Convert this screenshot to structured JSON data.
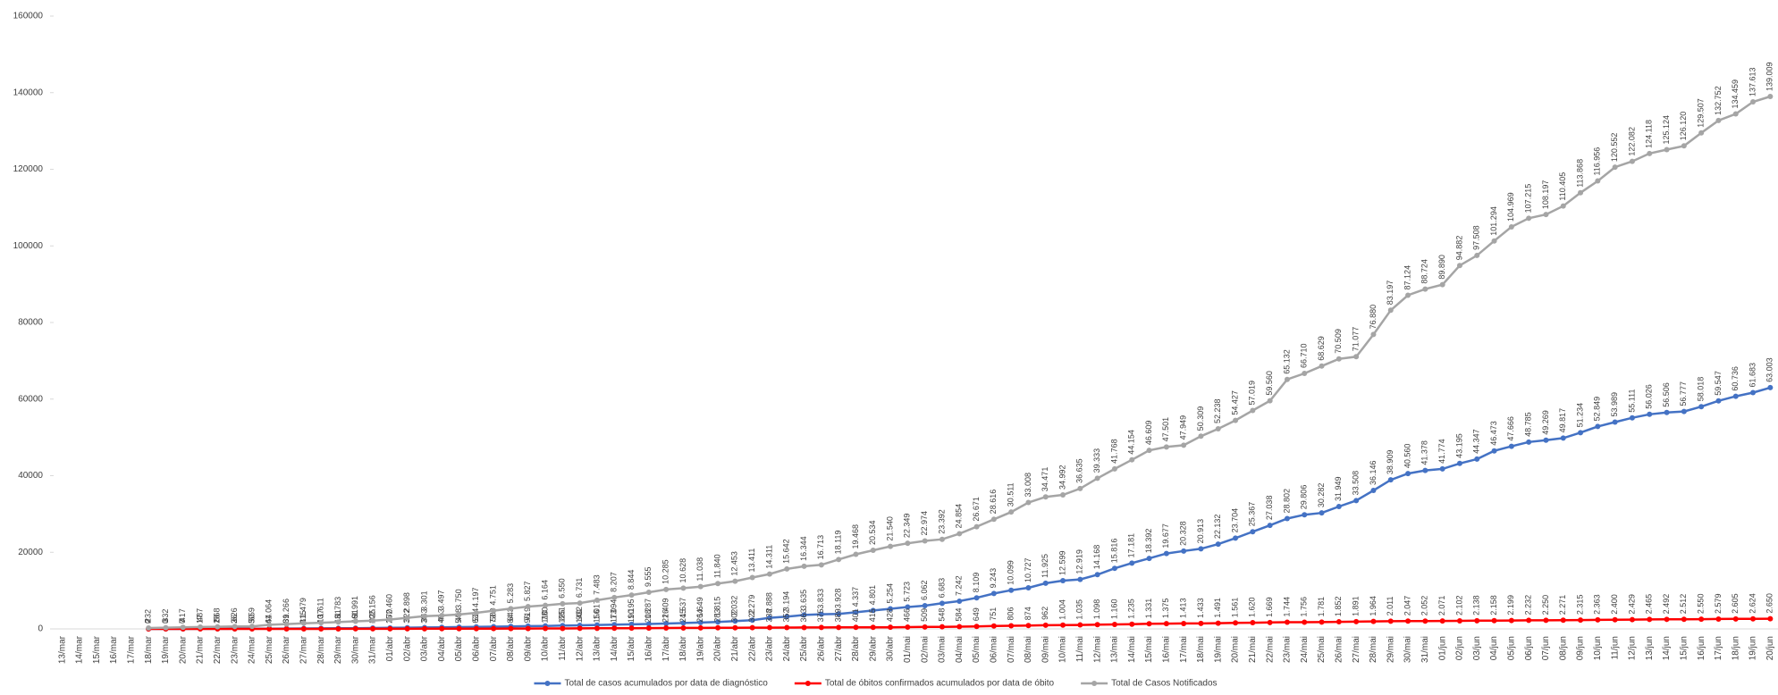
{
  "chart_data": {
    "type": "line",
    "categories": [
      "13/mar",
      "14/mar",
      "15/mar",
      "16/mar",
      "17/mar",
      "18/mar",
      "19/mar",
      "20/mar",
      "21/mar",
      "22/mar",
      "23/mar",
      "24/mar",
      "25/mar",
      "26/mar",
      "27/mar",
      "28/mar",
      "29/mar",
      "30/mar",
      "31/mar",
      "01/abr",
      "02/abr",
      "03/abr",
      "04/abr",
      "05/abr",
      "06/abr",
      "07/abr",
      "08/abr",
      "09/abr",
      "10/abr",
      "11/abr",
      "12/abr",
      "13/abr",
      "14/abr",
      "15/abr",
      "16/abr",
      "17/abr",
      "18/abr",
      "19/abr",
      "20/abr",
      "21/abr",
      "22/abr",
      "23/abr",
      "24/abr",
      "25/abr",
      "26/abr",
      "27/abr",
      "28/abr",
      "29/abr",
      "30/abr",
      "01/mai",
      "02/mai",
      "03/mai",
      "04/mai",
      "05/mai",
      "06/mai",
      "07/mai",
      "08/mai",
      "09/mai",
      "10/mai",
      "11/mai",
      "12/mai",
      "13/mai",
      "14/mai",
      "15/mai",
      "16/mai",
      "17/mai",
      "18/mai",
      "19/mai",
      "20/mai",
      "21/mai",
      "22/mai",
      "23/mai",
      "24/mai",
      "25/mai",
      "26/mai",
      "27/mai",
      "28/mai",
      "29/mai",
      "30/mai",
      "31/mai",
      "01/jun",
      "02/jun",
      "03/jun",
      "04/jun",
      "05/jun",
      "06/jun",
      "07/jun",
      "08/jun",
      "09/jun",
      "10/jun",
      "11/jun",
      "12/jun",
      "13/jun",
      "14/jun",
      "15/jun",
      "16/jun",
      "17/jun",
      "18/jun",
      "19/jun",
      "20/jun"
    ],
    "series": [
      {
        "name": "Total de casos acumulados por data de diagnóstico",
        "color": "#4472c4",
        "values": [
          null,
          null,
          null,
          null,
          null,
          2,
          3,
          7,
          17,
          28,
          36,
          50,
          64,
          89,
          115,
          137,
          161,
          191,
          225,
          270,
          322,
          363,
          413,
          478,
          524,
          589,
          643,
          719,
          780,
          861,
          932,
          1017,
          1094,
          1195,
          1287,
          1409,
          1537,
          1649,
          1815,
          2032,
          2279,
          2888,
          3194,
          3635,
          3833,
          3928,
          4337,
          4801,
          5254,
          5723,
          6062,
          6683,
          7242,
          8109,
          9243,
          10099,
          10727,
          11925,
          12599,
          12919,
          14168,
          15816,
          17181,
          18392,
          19677,
          20328,
          20913,
          22132,
          23704,
          25367,
          27038,
          28802,
          29806,
          30282,
          31949,
          33508,
          36146,
          38909,
          40560,
          41378,
          41774,
          43195,
          44347,
          46473,
          47666,
          48785,
          49269,
          49817,
          51234,
          52849,
          53989,
          55111,
          56026,
          56506,
          56777,
          58018,
          59547,
          60736,
          61683,
          63003
        ],
        "value_labels": [
          null,
          null,
          null,
          null,
          null,
          "2",
          "3",
          "7",
          "17",
          "28",
          "36",
          "50",
          "64",
          "89",
          "115",
          "137",
          "161",
          "191",
          "225",
          "270",
          "322",
          "363",
          "413",
          "478",
          "524",
          "589",
          "643",
          "719",
          "780",
          "861",
          "932",
          "1.017",
          "1.094",
          "1.195",
          "1.287",
          "1.409",
          "1.537",
          "1.649",
          "1.815",
          "2.032",
          "2.279",
          "2.888",
          "3.194",
          "3.635",
          "3.833",
          "3.928",
          "4.337",
          "4.801",
          "5.254",
          "5.723",
          "6.062",
          "6.683",
          "7.242",
          "8.109",
          "9.243",
          "10.099",
          "10.727",
          "11.925",
          "12.599",
          "12.919",
          "14.168",
          "15.816",
          "17.181",
          "18.392",
          "19.677",
          "20.328",
          "20.913",
          "22.132",
          "23.704",
          "25.367",
          "27.038",
          "28.802",
          "29.806",
          "30.282",
          "31.949",
          "33.508",
          "36.146",
          "38.909",
          "40.560",
          "41.378",
          "41.774",
          "43.195",
          "44.347",
          "46.473",
          "47.666",
          "48.785",
          "49.269",
          "49.817",
          "51.234",
          "52.849",
          "53.989",
          "55.111",
          "56.026",
          "56.506",
          "56.777",
          "58.018",
          "59.547",
          "60.736",
          "61.683",
          "63.003"
        ]
      },
      {
        "name": "Total de óbitos confirmados acumulados por data de óbito",
        "color": "#ff0000",
        "values": [
          null,
          null,
          null,
          null,
          null,
          0,
          0,
          0,
          1,
          1,
          2,
          3,
          4,
          6,
          8,
          10,
          13,
          16,
          20,
          25,
          31,
          38,
          46,
          54,
          63,
          73,
          84,
          96,
          110,
          125,
          140,
          156,
          173,
          190,
          208,
          226,
          245,
          264,
          283,
          302,
          322,
          338,
          352,
          363,
          375,
          389,
          401,
          415,
          428,
          466,
          509,
          548,
          584,
          649,
          751,
          806,
          874,
          962,
          1004,
          1035,
          1098,
          1160,
          1235,
          1331,
          1375,
          1413,
          1433,
          1491,
          1561,
          1620,
          1669,
          1744,
          1756,
          1781,
          1852,
          1891,
          1964,
          2011,
          2047,
          2052,
          2071,
          2102,
          2138,
          2158,
          2199,
          2232,
          2250,
          2271,
          2315,
          2363,
          2400,
          2429,
          2465,
          2492,
          2512,
          2550,
          2579,
          2605,
          2624,
          2650
        ],
        "value_labels": [
          null,
          null,
          null,
          null,
          null,
          "0",
          "0",
          "0",
          "1",
          "1",
          "2",
          "3",
          "4",
          "6",
          "8",
          "10",
          "13",
          "16",
          "20",
          "25",
          "31",
          "38",
          "46",
          "54",
          "63",
          "73",
          "84",
          "96",
          "110",
          "125",
          "140",
          "156",
          "173",
          "190",
          "208",
          "226",
          "245",
          "264",
          "283",
          "302",
          "322",
          "338",
          "352",
          "363",
          "375",
          "389",
          "401",
          "415",
          "428",
          "466",
          "509",
          "548",
          "584",
          "649",
          "751",
          "806",
          "874",
          "962",
          "1.004",
          "1.035",
          "1.098",
          "1.160",
          "1.235",
          "1.331",
          "1.375",
          "1.413",
          "1.433",
          "1.491",
          "1.561",
          "1.620",
          "1.669",
          "1.744",
          "1.756",
          "1.781",
          "1.852",
          "1.891",
          "1.964",
          "2.011",
          "2.047",
          "2.052",
          "2.071",
          "2.102",
          "2.138",
          "2.158",
          "2.199",
          "2.232",
          "2.250",
          "2.271",
          "2.315",
          "2.363",
          "2.400",
          "2.429",
          "2.465",
          "2.492",
          "2.512",
          "2.550",
          "2.579",
          "2.605",
          "2.624",
          "2.650"
        ]
      },
      {
        "name": "Total de Casos Notificados",
        "color": "#a5a5a5",
        "values": [
          null,
          null,
          null,
          null,
          null,
          232,
          332,
          417,
          487,
          568,
          626,
          659,
          1064,
          1266,
          1479,
          1611,
          1783,
          1991,
          2156,
          2460,
          2898,
          3301,
          3497,
          3750,
          4197,
          4751,
          5283,
          5827,
          6164,
          6550,
          6731,
          7483,
          8207,
          8844,
          9555,
          10285,
          10628,
          11038,
          11840,
          12453,
          13411,
          14311,
          15642,
          16344,
          16713,
          18119,
          19468,
          20534,
          21540,
          22349,
          22974,
          23392,
          24854,
          26671,
          28616,
          30511,
          33008,
          34471,
          34992,
          36635,
          39333,
          41768,
          44154,
          46609,
          47501,
          47949,
          50309,
          52238,
          54427,
          57019,
          59560,
          65132,
          66710,
          68629,
          70509,
          71077,
          76880,
          83197,
          87124,
          88724,
          89890,
          94882,
          97508,
          101294,
          104969,
          107215,
          108197,
          110405,
          113868,
          116956,
          120552,
          122082,
          124118,
          125124,
          126120,
          129507,
          132752,
          134459,
          137613,
          139009
        ],
        "value_labels": [
          null,
          null,
          null,
          null,
          null,
          "232",
          "332",
          "417",
          "487",
          "568",
          "626",
          "659",
          "1.064",
          "1.266",
          "1.479",
          "1.611",
          "1.783",
          "1.991",
          "2.156",
          "2.460",
          "2.898",
          "3.301",
          "3.497",
          "3.750",
          "4.197",
          "4.751",
          "5.283",
          "5.827",
          "6.164",
          "6.550",
          "6.731",
          "7.483",
          "8.207",
          "8.844",
          "9.555",
          "10.285",
          "10.628",
          "11.038",
          "11.840",
          "12.453",
          "13.411",
          "14.311",
          "15.642",
          "16.344",
          "16.713",
          "18.119",
          "19.468",
          "20.534",
          "21.540",
          "22.349",
          "22.974",
          "23.392",
          "24.854",
          "26.671",
          "28.616",
          "30.511",
          "33.008",
          "34.471",
          "34.992",
          "36.635",
          "39.333",
          "41.768",
          "44.154",
          "46.609",
          "47.501",
          "47.949",
          "50.309",
          "52.238",
          "54.427",
          "57.019",
          "59.560",
          "65.132",
          "66.710",
          "68.629",
          "70.509",
          "71.077",
          "76.880",
          "83.197",
          "87.124",
          "88.724",
          "89.890",
          "94.882",
          "97.508",
          "101.294",
          "104.969",
          "107.215",
          "108.197",
          "110.405",
          "113.868",
          "116.956",
          "120.552",
          "122.082",
          "124.118",
          "125.124",
          "126.120",
          "129.507",
          "132.752",
          "134.459",
          "137.613",
          "139.009"
        ]
      }
    ],
    "ylim": [
      0,
      160000
    ],
    "yticks": [
      0,
      20000,
      40000,
      60000,
      80000,
      100000,
      120000,
      140000,
      160000
    ],
    "legend": "bottom",
    "marker": "circle"
  }
}
